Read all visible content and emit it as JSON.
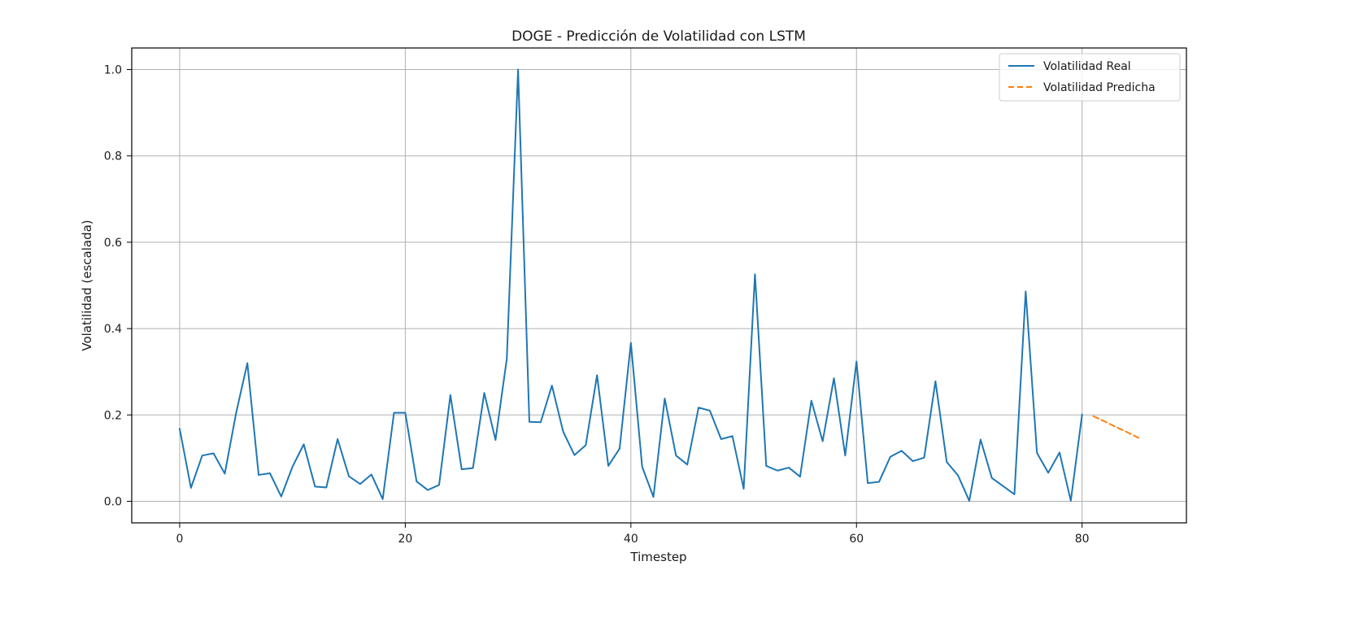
{
  "chart_data": {
    "type": "line",
    "title": "DOGE - Predicción de Volatilidad con LSTM",
    "xlabel": "Timestep",
    "ylabel": "Volatilidad (escalada)",
    "xlim": [
      -4.25,
      89.25
    ],
    "ylim": [
      -0.05,
      1.05
    ],
    "x_ticks": [
      0,
      20,
      40,
      60,
      80
    ],
    "y_ticks": [
      0.0,
      0.2,
      0.4,
      0.6,
      0.8,
      1.0
    ],
    "x_tick_labels": [
      "0",
      "20",
      "40",
      "60",
      "80"
    ],
    "y_tick_labels": [
      "0.0",
      "0.2",
      "0.4",
      "0.6",
      "0.8",
      "1.0"
    ],
    "grid": true,
    "legend_position": "top-right",
    "series": [
      {
        "name": "Volatilidad Real",
        "color": "#1f77b4",
        "style": "solid",
        "x": [
          0,
          1,
          2,
          3,
          4,
          5,
          6,
          7,
          8,
          9,
          10,
          11,
          12,
          13,
          14,
          15,
          16,
          17,
          18,
          19,
          20,
          21,
          22,
          23,
          24,
          25,
          26,
          27,
          28,
          29,
          30,
          31,
          32,
          33,
          34,
          35,
          36,
          37,
          38,
          39,
          40,
          41,
          42,
          43,
          44,
          45,
          46,
          47,
          48,
          49,
          50,
          51,
          52,
          53,
          54,
          55,
          56,
          57,
          58,
          59,
          60,
          61,
          62,
          63,
          64,
          65,
          66,
          67,
          68,
          69,
          70,
          71,
          72,
          73,
          74,
          75,
          76,
          77,
          78,
          79,
          80
        ],
        "values": [
          0.168,
          0.031,
          0.106,
          0.111,
          0.064,
          0.204,
          0.32,
          0.061,
          0.065,
          0.011,
          0.08,
          0.132,
          0.034,
          0.032,
          0.144,
          0.058,
          0.04,
          0.062,
          0.005,
          0.205,
          0.205,
          0.046,
          0.026,
          0.038,
          0.246,
          0.074,
          0.077,
          0.251,
          0.142,
          0.33,
          1.0,
          0.184,
          0.183,
          0.268,
          0.161,
          0.107,
          0.13,
          0.292,
          0.082,
          0.122,
          0.367,
          0.08,
          0.01,
          0.238,
          0.106,
          0.085,
          0.217,
          0.21,
          0.144,
          0.151,
          0.029,
          0.526,
          0.082,
          0.071,
          0.078,
          0.057,
          0.233,
          0.139,
          0.285,
          0.106,
          0.324,
          0.042,
          0.045,
          0.103,
          0.117,
          0.093,
          0.101,
          0.278,
          0.091,
          0.06,
          0.001,
          0.143,
          0.054,
          0.035,
          0.016,
          0.486,
          0.112,
          0.066,
          0.113,
          0.001,
          0.201
        ]
      },
      {
        "name": "Volatilidad Predicha",
        "color": "#ff7f0e",
        "style": "dashed",
        "x": [
          81,
          82,
          83,
          84,
          85
        ],
        "values": [
          0.197,
          0.185,
          0.172,
          0.16,
          0.147
        ]
      }
    ]
  }
}
